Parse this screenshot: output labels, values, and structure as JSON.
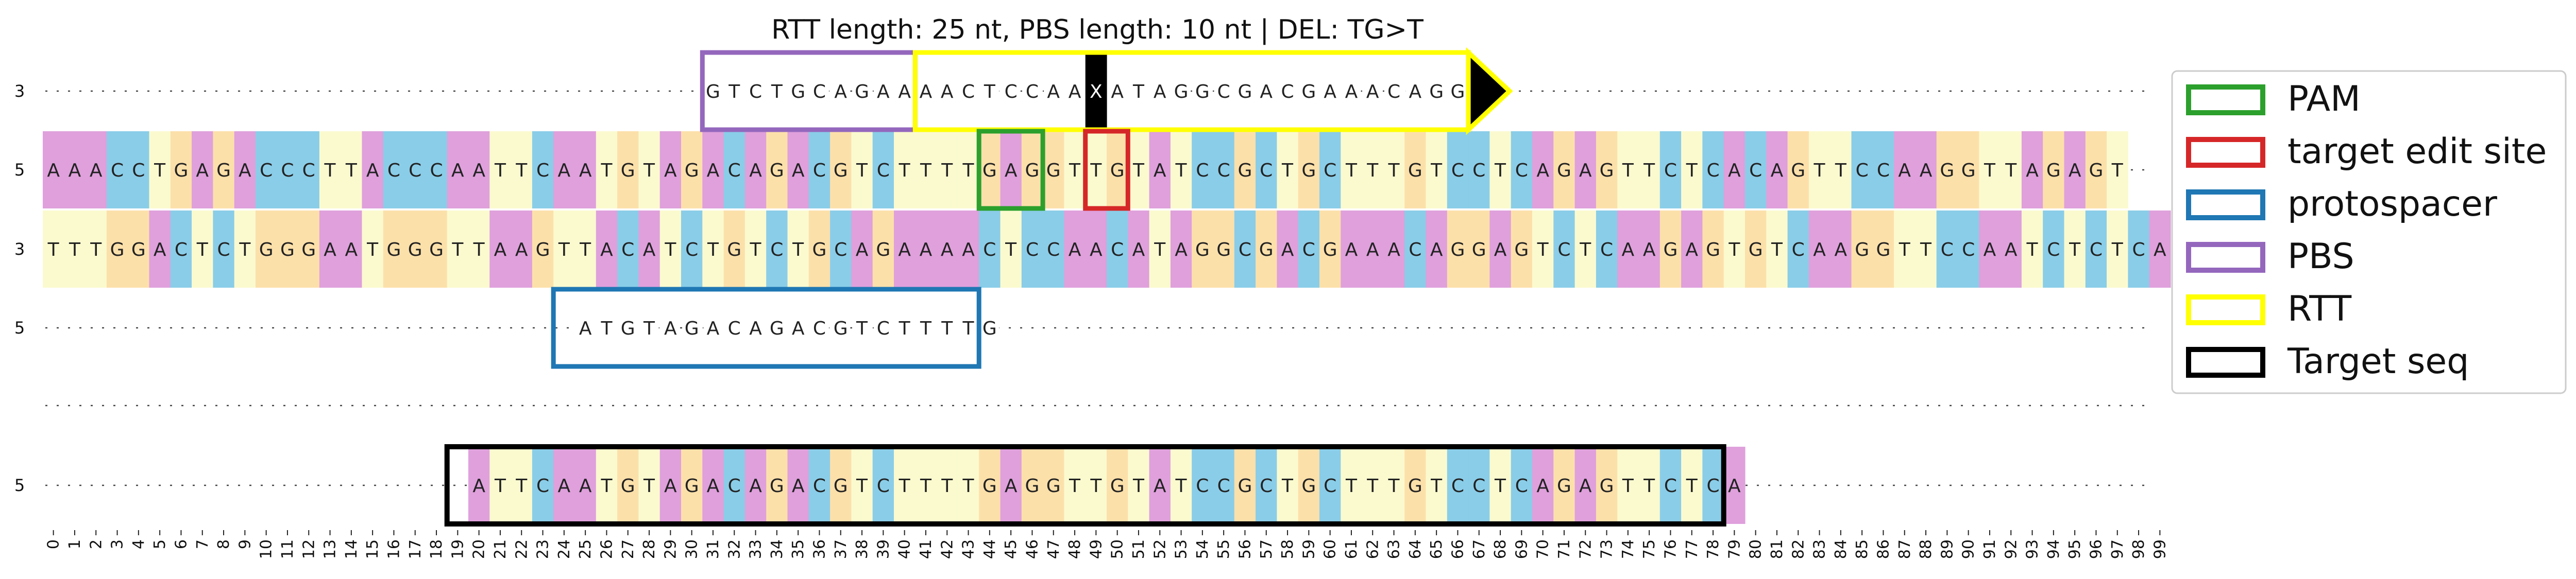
{
  "title": "RTT length: 25 nt, PBS length: 10 nt | DEL: TG>T",
  "colors": {
    "A": "#dfa0dc",
    "C": "#8acde8",
    "G": "#fce0aa",
    "T": "#fbfacf",
    "edit_mark": "#000000",
    "PAM": "#2ca02c",
    "target edit site": "#d62728",
    "protospacer": "#1f77b4",
    "PBS": "#9467bd",
    "RTT": "#ffff00",
    "Target seq": "#000000"
  },
  "x_ticks": [
    "0",
    "1",
    "2",
    "3",
    "4",
    "5",
    "6",
    "7",
    "8",
    "9",
    "10",
    "11",
    "12",
    "13",
    "14",
    "15",
    "16",
    "17",
    "18",
    "19",
    "20",
    "21",
    "22",
    "23",
    "24",
    "25",
    "26",
    "27",
    "28",
    "29",
    "30",
    "31",
    "32",
    "33",
    "34",
    "35",
    "36",
    "37",
    "38",
    "39",
    "40",
    "41",
    "42",
    "43",
    "44",
    "45",
    "46",
    "47",
    "48",
    "49",
    "50",
    "51",
    "52",
    "53",
    "54",
    "55",
    "56",
    "57",
    "58",
    "59",
    "60",
    "61",
    "62",
    "63",
    "64",
    "65",
    "66",
    "67",
    "68",
    "69",
    "70",
    "71",
    "72",
    "73",
    "74",
    "75",
    "76",
    "77",
    "78",
    "79",
    "80",
    "81",
    "82",
    "83",
    "84",
    "85",
    "86",
    "87",
    "88",
    "89",
    "90",
    "91",
    "92",
    "93",
    "94",
    "95",
    "96",
    "97",
    "98",
    "99"
  ],
  "tracks": [
    {
      "id": "pegRNA",
      "end_label": "3",
      "start": 31,
      "seq": "GTCTGCAGAAAACTCCAAXATAGGCGACGAAACAGG",
      "colored": false
    },
    {
      "id": "top",
      "end_label": "5",
      "start": 0,
      "seq": "AAACCTGAGACCCTTACCCAATTCAATGTAGACAGACGTCTTTTGAGGTTGTATCCGCTGCTTTGTCCTCAGAGTTCTCACAGTTCCAAGGTTAGAGT",
      "colored": true
    },
    {
      "id": "bottom",
      "end_label": "3",
      "start": 0,
      "seq": "TTTGGACTCTGGGAATGGGTTAAGTTACATCTGTCTGCAGAAAACTCCAACATAGGCGACGAAACAGGAGTCTCAAGAGTGTCAAGGTTCCAATCTCTCA",
      "colored": true
    },
    {
      "id": "spacer",
      "end_label": "5",
      "start": 25,
      "seq": "ATGTAGACAGACGTCTTTTG",
      "colored": false
    },
    {
      "id": "divider",
      "end_label": "",
      "start": 0,
      "seq": "",
      "colored": false
    },
    {
      "id": "target",
      "end_label": "5",
      "start": 20,
      "seq": "ATTCAATGTAGACAGACGTCTTTTGAGGTTGTATCCGCTGCTTTGTCCTCAGAGTTCTCA",
      "colored": true
    }
  ],
  "annotations": [
    {
      "type": "PBS",
      "track": "pegRNA",
      "start": 31,
      "end": 41
    },
    {
      "type": "RTT",
      "track": "pegRNA",
      "start": 41,
      "end": 67,
      "arrow": true
    },
    {
      "type": "PAM",
      "track": "top",
      "start": 44,
      "end": 47
    },
    {
      "type": "target edit site",
      "track": "top",
      "start": 49,
      "end": 51
    },
    {
      "type": "protospacer",
      "track": "spacer",
      "start": 24,
      "end": 44
    },
    {
      "type": "Target seq",
      "track": "target",
      "start": 19,
      "end": 79
    }
  ],
  "legend": {
    "position": "right",
    "entries": [
      {
        "label": "PAM",
        "color": "#2ca02c"
      },
      {
        "label": "target edit site",
        "color": "#d62728"
      },
      {
        "label": "protospacer",
        "color": "#1f77b4"
      },
      {
        "label": "PBS",
        "color": "#9467bd"
      },
      {
        "label": "RTT",
        "color": "#ffff00"
      },
      {
        "label": "Target seq",
        "color": "#000000"
      }
    ]
  }
}
